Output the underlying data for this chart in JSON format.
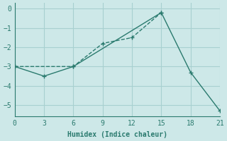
{
  "line1_x": [
    0,
    6,
    9,
    12,
    15
  ],
  "line1_y": [
    -3.0,
    -3.0,
    -1.8,
    -1.5,
    -0.2
  ],
  "line2_x": [
    0,
    3,
    6,
    15,
    18,
    21
  ],
  "line2_y": [
    -3.0,
    -3.5,
    -3.0,
    -0.2,
    -3.3,
    -5.3
  ],
  "color": "#2a7a6e",
  "bg_color": "#cde8e8",
  "grid_color": "#a8d0d0",
  "xlabel": "Humidex (Indice chaleur)",
  "xlim": [
    0,
    21
  ],
  "ylim": [
    -5.6,
    0.3
  ],
  "xticks": [
    0,
    3,
    6,
    9,
    12,
    15,
    18,
    21
  ],
  "yticks": [
    0,
    -1,
    -2,
    -3,
    -4,
    -5
  ],
  "line1_style": "--",
  "line2_style": "-",
  "line_width": 1.0,
  "marker": "+",
  "marker_size": 5
}
